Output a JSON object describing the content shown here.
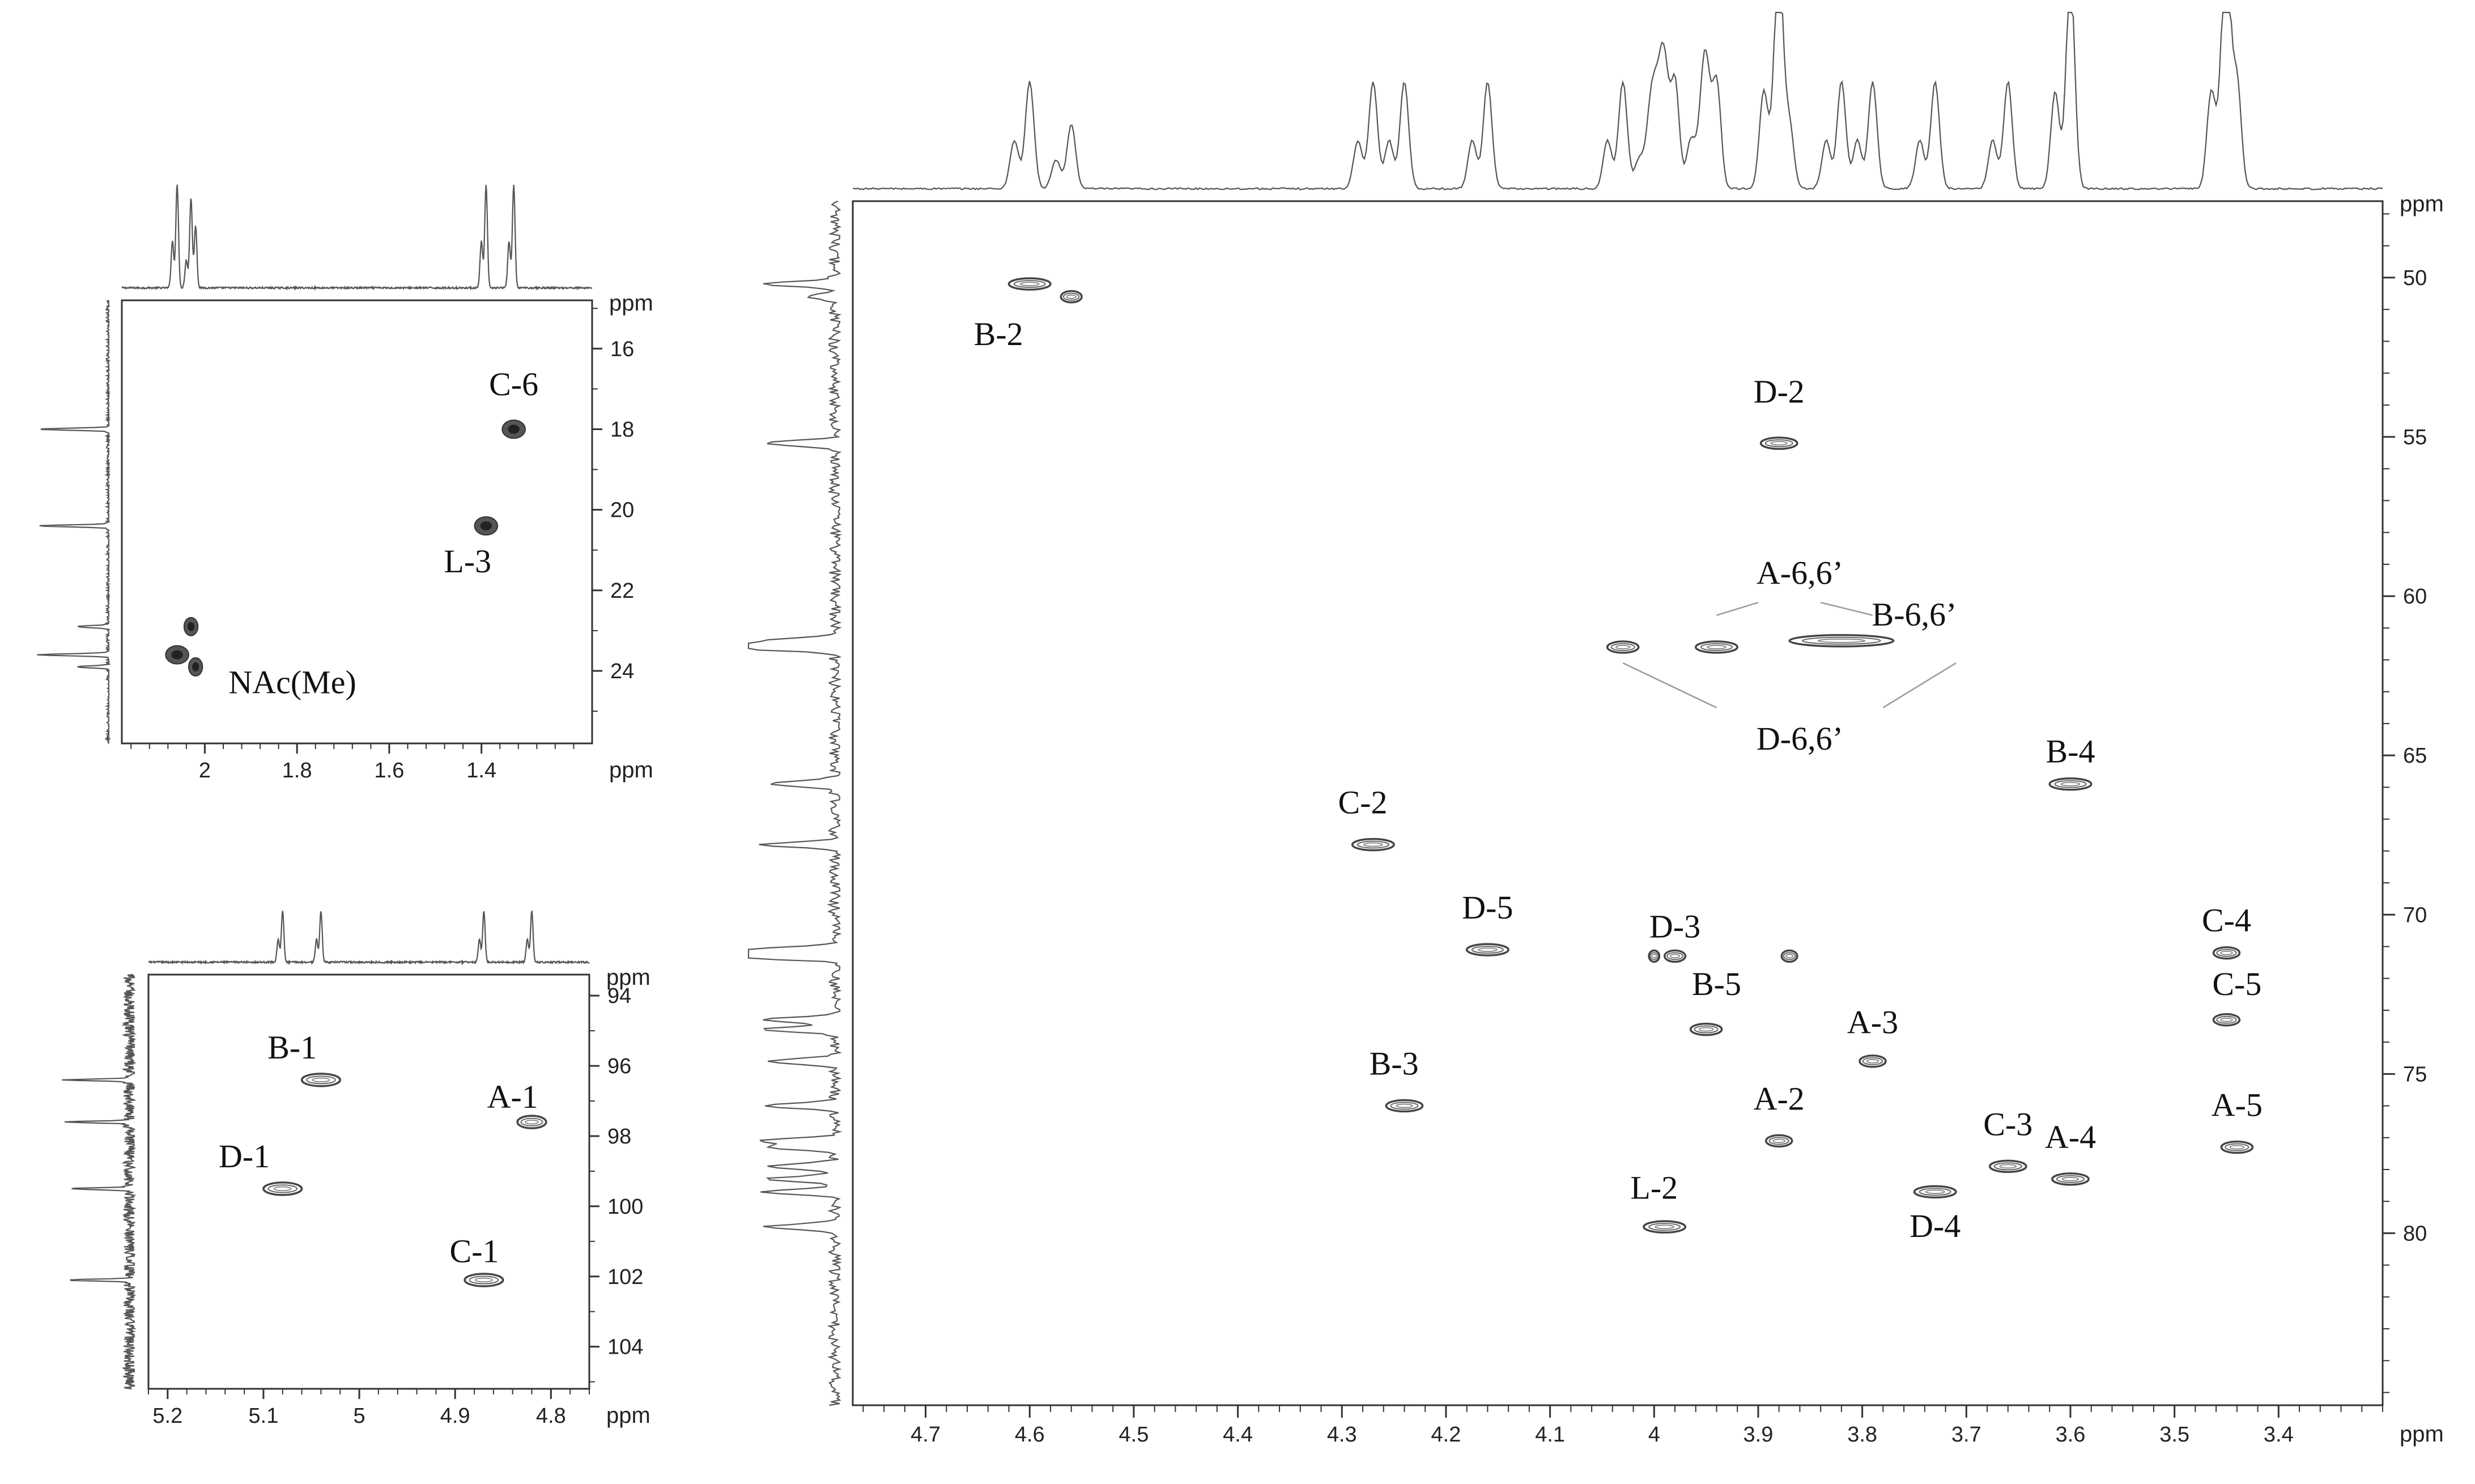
{
  "chart_data": [
    {
      "id": "p1",
      "type": "scatter",
      "subtype": "2D NMR (HSQC) region: methyl carbons",
      "x_label": "ppm",
      "y_label": "ppm",
      "x_reversed": true,
      "y_reversed": true,
      "xlim": [
        2.18,
        1.16
      ],
      "ylim": [
        14.8,
        25.8
      ],
      "x_ticks": [
        2.0,
        1.8,
        1.6,
        1.4
      ],
      "y_ticks": [
        16,
        18,
        20,
        22,
        24
      ],
      "cross_peaks": [
        {
          "label": "C-6",
          "x": 1.33,
          "y": 18.0,
          "w": 0.05
        },
        {
          "label": "L-3",
          "x": 1.39,
          "y": 20.4,
          "w": 0.05
        },
        {
          "label": "",
          "x": 2.03,
          "y": 22.9,
          "w": 0.03
        },
        {
          "label": "NAc(Me)",
          "x": 2.06,
          "y": 23.6,
          "w": 0.05
        },
        {
          "label": "",
          "x": 2.02,
          "y": 23.9,
          "w": 0.03
        }
      ],
      "label_positions_data": [
        {
          "label": "C-6",
          "x": 1.33,
          "y": 16.9
        },
        {
          "label": "L-3",
          "x": 1.43,
          "y": 21.3
        },
        {
          "label": "NAc(Me)",
          "x": 1.81,
          "y": 24.3
        }
      ]
    },
    {
      "id": "p2",
      "type": "scatter",
      "subtype": "2D NMR (HSQC) region: anomeric carbons",
      "x_label": "ppm",
      "y_label": "ppm",
      "x_reversed": true,
      "y_reversed": true,
      "xlim": [
        5.22,
        4.76
      ],
      "ylim": [
        93.4,
        105.2
      ],
      "x_ticks": [
        5.2,
        5.1,
        5.0,
        4.9,
        4.8
      ],
      "y_ticks": [
        94,
        96,
        98,
        100,
        102,
        104
      ],
      "cross_peaks": [
        {
          "label": "B-1",
          "x": 5.04,
          "y": 96.4,
          "w": 0.04
        },
        {
          "label": "A-1",
          "x": 4.82,
          "y": 97.6,
          "w": 0.03
        },
        {
          "label": "D-1",
          "x": 5.08,
          "y": 99.5,
          "w": 0.04
        },
        {
          "label": "C-1",
          "x": 4.87,
          "y": 102.1,
          "w": 0.04
        }
      ],
      "label_positions_data": [
        {
          "label": "B-1",
          "x": 5.07,
          "y": 95.5
        },
        {
          "label": "A-1",
          "x": 4.84,
          "y": 96.9
        },
        {
          "label": "D-1",
          "x": 5.12,
          "y": 98.6
        },
        {
          "label": "C-1",
          "x": 4.88,
          "y": 101.3
        }
      ]
    },
    {
      "id": "p3",
      "type": "scatter",
      "subtype": "2D NMR (HSQC) region: ring carbons",
      "x_label": "ppm",
      "y_label": "ppm",
      "x_reversed": true,
      "y_reversed": true,
      "xlim": [
        4.77,
        3.3
      ],
      "ylim": [
        47.6,
        85.4
      ],
      "x_ticks": [
        4.7,
        4.6,
        4.5,
        4.4,
        4.3,
        4.2,
        4.1,
        4.0,
        3.9,
        3.8,
        3.7,
        3.6,
        3.5,
        3.4
      ],
      "y_ticks": [
        50,
        55,
        60,
        65,
        70,
        75,
        80
      ],
      "cross_peaks": [
        {
          "label": "B-2",
          "x": 4.6,
          "y": 50.2,
          "w": 0.04
        },
        {
          "label": "",
          "x": 4.56,
          "y": 50.6,
          "w": 0.02
        },
        {
          "label": "D-2",
          "x": 3.88,
          "y": 55.2,
          "w": 0.035
        },
        {
          "label": "D-6,6’",
          "x": 4.03,
          "y": 61.6,
          "w": 0.03
        },
        {
          "label": "A-6,6’",
          "x": 3.94,
          "y": 61.6,
          "w": 0.04
        },
        {
          "label": "B-6,6’",
          "x": 3.82,
          "y": 61.4,
          "w": 0.1
        },
        {
          "label": "B-4",
          "x": 3.6,
          "y": 65.9,
          "w": 0.04
        },
        {
          "label": "C-2",
          "x": 4.27,
          "y": 67.8,
          "w": 0.04
        },
        {
          "label": "D-5",
          "x": 4.16,
          "y": 71.1,
          "w": 0.04
        },
        {
          "label": "D-3",
          "x": 3.98,
          "y": 71.3,
          "w": 0.02
        },
        {
          "label": "",
          "x": 4.0,
          "y": 71.3,
          "w": 0.01
        },
        {
          "label": "",
          "x": 3.87,
          "y": 71.3,
          "w": 0.015
        },
        {
          "label": "C-4",
          "x": 3.45,
          "y": 71.2,
          "w": 0.025
        },
        {
          "label": "B-5",
          "x": 3.95,
          "y": 73.6,
          "w": 0.03
        },
        {
          "label": "C-5",
          "x": 3.45,
          "y": 73.3,
          "w": 0.025
        },
        {
          "label": "A-3",
          "x": 3.79,
          "y": 74.6,
          "w": 0.025
        },
        {
          "label": "B-3",
          "x": 4.24,
          "y": 76.0,
          "w": 0.035
        },
        {
          "label": "A-2",
          "x": 3.88,
          "y": 77.1,
          "w": 0.025
        },
        {
          "label": "A-5",
          "x": 3.44,
          "y": 77.3,
          "w": 0.03
        },
        {
          "label": "C-3",
          "x": 3.66,
          "y": 77.9,
          "w": 0.035
        },
        {
          "label": "A-4",
          "x": 3.6,
          "y": 78.3,
          "w": 0.035
        },
        {
          "label": "D-4",
          "x": 3.73,
          "y": 78.7,
          "w": 0.04
        },
        {
          "label": "L-2",
          "x": 3.99,
          "y": 79.8,
          "w": 0.04
        }
      ],
      "label_positions_data": [
        {
          "label": "B-2",
          "x": 4.63,
          "y": 51.8
        },
        {
          "label": "D-2",
          "x": 3.88,
          "y": 53.6
        },
        {
          "label": "A-6,6’",
          "x": 3.86,
          "y": 59.3
        },
        {
          "label": "B-6,6’",
          "x": 3.75,
          "y": 60.6
        },
        {
          "label": "D-6,6’",
          "x": 3.86,
          "y": 64.5
        },
        {
          "label": "B-4",
          "x": 3.6,
          "y": 64.9
        },
        {
          "label": "C-2",
          "x": 4.28,
          "y": 66.5
        },
        {
          "label": "D-5",
          "x": 4.16,
          "y": 69.8
        },
        {
          "label": "D-3",
          "x": 3.98,
          "y": 70.4
        },
        {
          "label": "C-4",
          "x": 3.45,
          "y": 70.2
        },
        {
          "label": "B-5",
          "x": 3.94,
          "y": 72.2
        },
        {
          "label": "C-5",
          "x": 3.44,
          "y": 72.2
        },
        {
          "label": "A-3",
          "x": 3.79,
          "y": 73.4
        },
        {
          "label": "B-3",
          "x": 4.25,
          "y": 74.7
        },
        {
          "label": "A-2",
          "x": 3.88,
          "y": 75.8
        },
        {
          "label": "A-5",
          "x": 3.44,
          "y": 76.0
        },
        {
          "label": "C-3",
          "x": 3.66,
          "y": 76.6
        },
        {
          "label": "A-4",
          "x": 3.6,
          "y": 77.0
        },
        {
          "label": "D-4",
          "x": 3.73,
          "y": 79.8
        },
        {
          "label": "L-2",
          "x": 4.0,
          "y": 78.6
        }
      ],
      "guide_lines": [
        {
          "from": [
            3.94,
            60.6
          ],
          "to": [
            3.9,
            60.2
          ]
        },
        {
          "from": [
            3.84,
            60.2
          ],
          "to": [
            3.79,
            60.6
          ]
        },
        {
          "from": [
            4.03,
            62.1
          ],
          "to": [
            3.94,
            63.5
          ]
        },
        {
          "from": [
            3.78,
            63.5
          ],
          "to": [
            3.71,
            62.1
          ]
        }
      ]
    }
  ]
}
